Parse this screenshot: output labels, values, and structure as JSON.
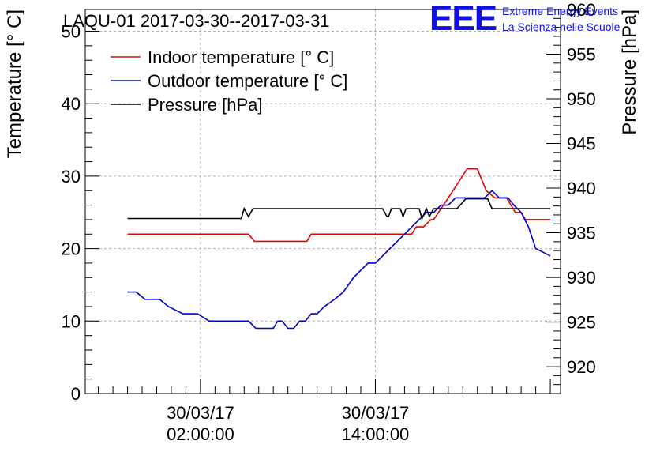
{
  "header": {
    "title": "LAQU-01 2017-03-30--2017-03-31",
    "logo": "EEE",
    "brand_line1": "Extreme Energy Events",
    "brand_line2": "La Scienza nelle Scuole",
    "brand_color": "#1010e6"
  },
  "chart_data": {
    "type": "line",
    "title": "LAQU-01 2017-03-30--2017-03-31",
    "x_unit": "hours from 30/03/17 00:00",
    "xlim": [
      -5.9,
      26.7
    ],
    "x_ticks": [
      {
        "x": 2,
        "date": "30/03/17",
        "time": "02:00:00"
      },
      {
        "x": 14,
        "date": "30/03/17",
        "time": "14:00:00"
      }
    ],
    "left_axis": {
      "label": "Temperature [° C]",
      "ylim": [
        0,
        53
      ],
      "ticks": [
        0,
        10,
        20,
        30,
        40,
        50
      ]
    },
    "right_axis": {
      "label": "Pressure [hPa]",
      "ylim": [
        917,
        960
      ],
      "ticks": [
        920,
        925,
        930,
        935,
        940,
        945,
        950,
        955,
        960
      ]
    },
    "grid": true,
    "legend_position": "top-left",
    "series": [
      {
        "name": "Indoor temperature [° C]",
        "axis": "left",
        "color": "#e60000",
        "x": [
          -3,
          5.3,
          5.7,
          9.3,
          9.6,
          16.5,
          16.8,
          17.3,
          17.8,
          18.0,
          19.0,
          20.3,
          21.0,
          21.6,
          22.2,
          23.0,
          23.6,
          24.0,
          24.3,
          26.0
        ],
        "y": [
          22,
          22,
          21,
          21,
          22,
          22,
          23,
          23,
          24,
          24,
          27,
          31,
          31,
          28,
          27,
          27,
          25,
          25,
          24,
          24
        ]
      },
      {
        "name": "Outdoor temperature [° C]",
        "axis": "left",
        "color": "#0000cc",
        "x": [
          -3,
          -2.4,
          -1.8,
          -0.8,
          -0.2,
          0.8,
          1.8,
          2.6,
          3.4,
          4.2,
          5.3,
          5.8,
          7.0,
          7.3,
          7.6,
          8.0,
          8.4,
          8.8,
          9.2,
          9.6,
          10.0,
          10.5,
          11.2,
          11.8,
          12.5,
          13.0,
          13.5,
          14.0,
          14.5,
          15.0,
          15.5,
          16.0,
          16.5,
          17.0,
          17.5,
          18.0,
          18.5,
          19.0,
          19.5,
          20.0,
          20.5,
          21.0,
          21.5,
          22.0,
          22.5,
          23.1,
          23.5,
          24.0,
          24.5,
          25.0,
          26.0
        ],
        "y": [
          14,
          14,
          13,
          13,
          12,
          11,
          11,
          10,
          10,
          10,
          10,
          9,
          9,
          10,
          10,
          9,
          9,
          10,
          10,
          11,
          11,
          12,
          13,
          14,
          16,
          17,
          18,
          18,
          19,
          20,
          21,
          22,
          23,
          24,
          25,
          25,
          26,
          26,
          27,
          27,
          27,
          27,
          27,
          28,
          27,
          27,
          26,
          25,
          23,
          20,
          19
        ]
      },
      {
        "name": "Pressure [hPa]",
        "axis": "right",
        "color": "#000000",
        "x": [
          -3,
          4.8,
          5.0,
          5.3,
          5.6,
          6.0,
          14.5,
          14.8,
          14.9,
          15.1,
          15.3,
          15.7,
          15.9,
          16.1,
          16.3,
          16.6,
          17.0,
          17.2,
          17.5,
          17.7,
          18.0,
          18.4,
          19.0,
          19.6,
          20.2,
          21.0,
          21.7,
          22.0,
          26.0
        ],
        "y": [
          936.6,
          936.6,
          937.7,
          936.8,
          937.7,
          937.7,
          937.7,
          936.8,
          936.8,
          937.7,
          937.7,
          937.7,
          936.8,
          937.7,
          937.7,
          937.7,
          937.7,
          936.6,
          937.7,
          936.8,
          937.7,
          937.7,
          937.7,
          937.7,
          938.8,
          938.8,
          938.8,
          937.7,
          937.7
        ]
      }
    ]
  }
}
